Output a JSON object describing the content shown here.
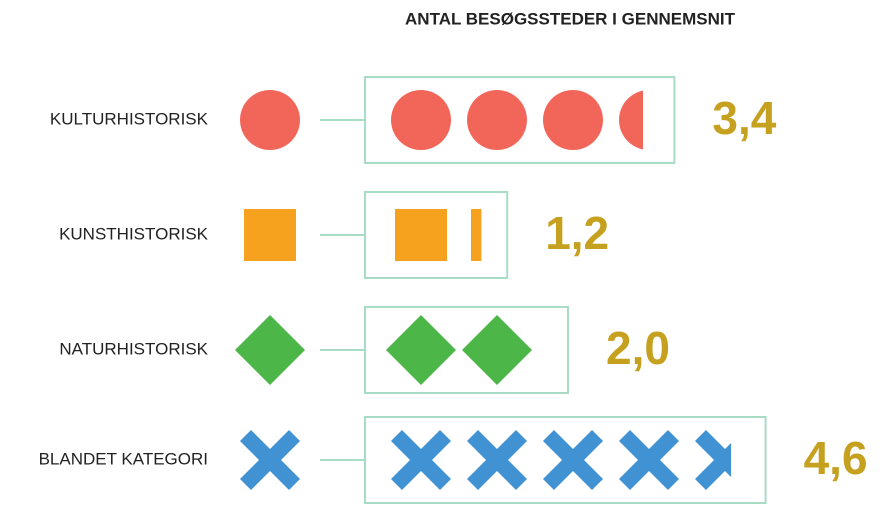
{
  "chart_data": {
    "type": "pictogram",
    "title": "ANTAL BESØGSSTEDER I GENNEMSNIT",
    "categories": [
      "KULTURHISTORISK",
      "KUNSTHISTORISK",
      "NATURHISTORISK",
      "BLANDET KATEGORI"
    ],
    "values": [
      3.4,
      1.2,
      2.0,
      4.6
    ],
    "value_labels": [
      "3,4",
      "1,2",
      "2,0",
      "4,6"
    ],
    "colors": [
      "#f2665a",
      "#f6a21e",
      "#4cb748",
      "#4192d3"
    ],
    "shapes": [
      "circle",
      "square",
      "diamond",
      "cross"
    ]
  }
}
